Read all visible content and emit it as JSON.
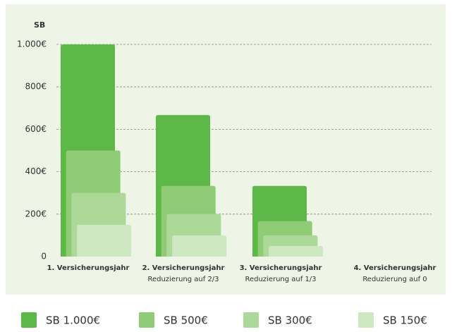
{
  "chart_data": {
    "type": "bar",
    "y_axis_label": "SB",
    "categories": [
      "1. Versicherungsjahr",
      "2. Versicherungsjahr",
      "3. Versicherungsjahr",
      "4. Versicherungsjahr"
    ],
    "category_notes": [
      null,
      "Reduzierung auf 2/3",
      "Reduzierung auf 1/3",
      "Reduzierung auf 0"
    ],
    "series": [
      {
        "name": "SB 1.000€",
        "color": "#5cb947",
        "values": [
          1000,
          667,
          333,
          0
        ]
      },
      {
        "name": "SB 500€",
        "color": "#8fcc75",
        "values": [
          500,
          333,
          167,
          0
        ]
      },
      {
        "name": "SB 300€",
        "color": "#acd898",
        "values": [
          300,
          200,
          100,
          0
        ]
      },
      {
        "name": "SB 150€",
        "color": "#cde7c0",
        "values": [
          150,
          100,
          50,
          0
        ]
      }
    ],
    "ylim": [
      0,
      1000
    ],
    "yticks": [
      0,
      {
        "value": 200,
        "label": "200€"
      },
      {
        "value": 400,
        "label": "400€"
      },
      {
        "value": 600,
        "label": "600€"
      },
      {
        "value": 800,
        "label": "800€"
      },
      {
        "value": 1000,
        "label": "1.000€"
      }
    ],
    "grid": true,
    "legend": "bottom"
  }
}
